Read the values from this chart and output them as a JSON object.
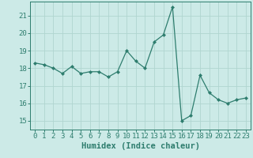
{
  "x": [
    0,
    1,
    2,
    3,
    4,
    5,
    6,
    7,
    8,
    9,
    10,
    11,
    12,
    13,
    14,
    15,
    16,
    17,
    18,
    19,
    20,
    21,
    22,
    23
  ],
  "y": [
    18.3,
    18.2,
    18.0,
    17.7,
    18.1,
    17.7,
    17.8,
    17.8,
    17.5,
    17.8,
    19.0,
    18.4,
    18.0,
    19.5,
    19.9,
    21.5,
    15.0,
    15.3,
    17.6,
    16.6,
    16.2,
    16.0,
    16.2,
    16.3
  ],
  "line_color": "#2e7d6e",
  "marker": "D",
  "marker_size": 2.0,
  "bg_color": "#cceae7",
  "grid_color": "#b0d5d0",
  "axis_color": "#2e7d6e",
  "xlabel": "Humidex (Indice chaleur)",
  "xlim": [
    -0.5,
    23.5
  ],
  "ylim": [
    14.5,
    21.8
  ],
  "yticks": [
    15,
    16,
    17,
    18,
    19,
    20,
    21
  ],
  "xticks": [
    0,
    1,
    2,
    3,
    4,
    5,
    6,
    7,
    8,
    9,
    10,
    11,
    12,
    13,
    14,
    15,
    16,
    17,
    18,
    19,
    20,
    21,
    22,
    23
  ],
  "xlabel_fontsize": 7.5,
  "tick_fontsize": 6.5,
  "linewidth": 0.9
}
